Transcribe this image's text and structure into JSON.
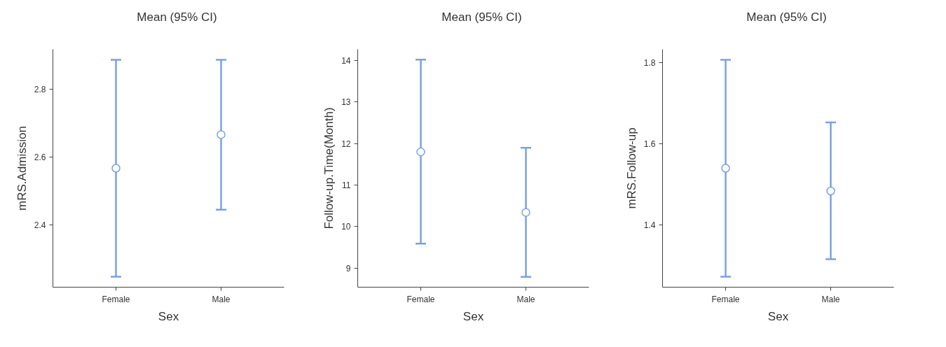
{
  "chart_data": [
    {
      "type": "scatter",
      "xlabel": "Sex",
      "ylabel": "mRS.Admission",
      "categories": [
        "Female",
        "Male"
      ],
      "legend": "top",
      "grid": false,
      "marker": "circle",
      "ylim": [
        2.217,
        2.917
      ],
      "yticks": [
        2.4,
        2.6,
        2.8
      ],
      "series": [
        {
          "name": "Mean (95% CI)",
          "color": "#7aa2df",
          "values": [
            2.567,
            2.666
          ],
          "errors": [
            [
              2.248,
              2.886
            ],
            [
              2.445,
              2.886
            ]
          ]
        }
      ]
    },
    {
      "type": "scatter",
      "xlabel": "Sex",
      "ylabel": "Follow-up.Time(Month)",
      "categories": [
        "Female",
        "Male"
      ],
      "legend": "top",
      "grid": false,
      "marker": "circle",
      "ylim": [
        8.54,
        14.27
      ],
      "yticks": [
        9,
        10,
        11,
        12,
        13,
        14
      ],
      "series": [
        {
          "name": "Mean (95% CI)",
          "color": "#7aa2df",
          "values": [
            11.8,
            10.34
          ],
          "errors": [
            [
              9.59,
              14.02
            ],
            [
              8.79,
              11.9
            ]
          ]
        }
      ]
    },
    {
      "type": "scatter",
      "xlabel": "Sex",
      "ylabel": "mRS.Follow-up",
      "categories": [
        "Female",
        "Male"
      ],
      "legend": "top",
      "grid": false,
      "marker": "circle",
      "ylim": [
        1.247,
        1.833
      ],
      "yticks": [
        1.4,
        1.6,
        1.8
      ],
      "series": [
        {
          "name": "Mean (95% CI)",
          "color": "#7aa2df",
          "values": [
            1.54,
            1.484
          ],
          "errors": [
            [
              1.273,
              1.807
            ],
            [
              1.316,
              1.653
            ]
          ]
        }
      ]
    }
  ]
}
